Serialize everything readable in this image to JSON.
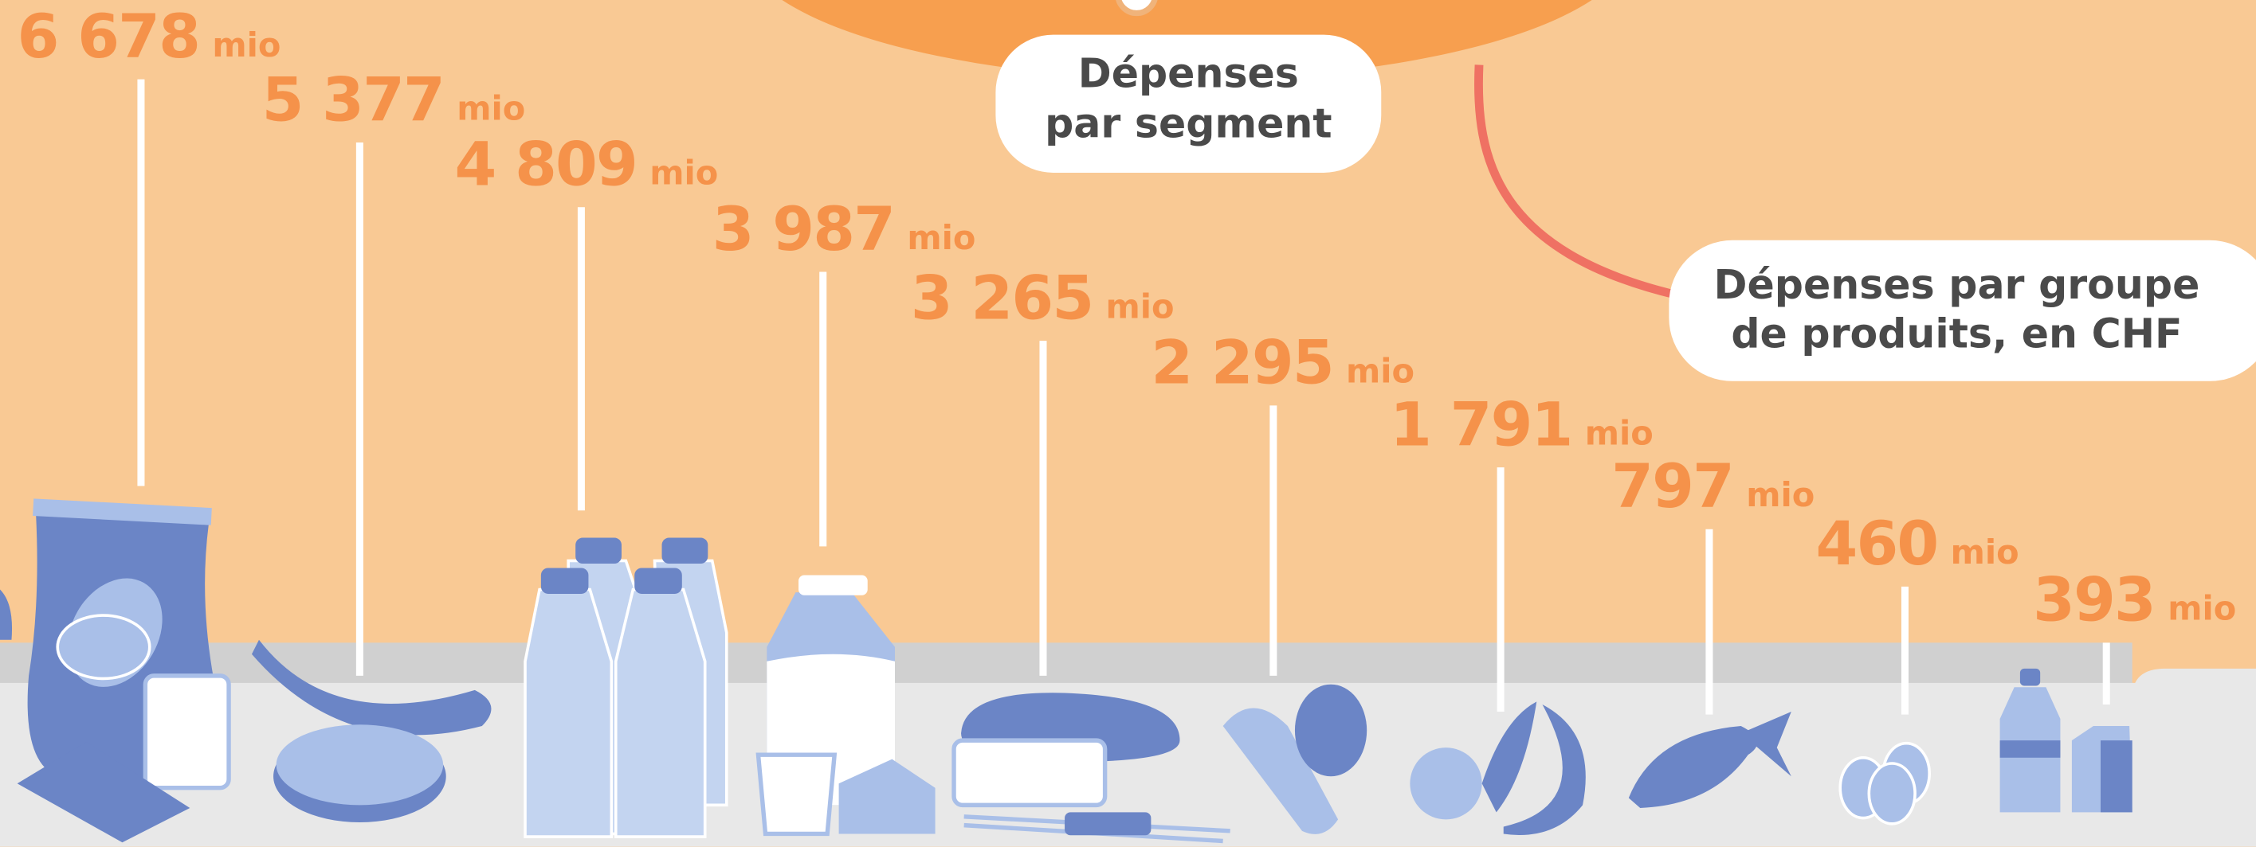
{
  "chart_data": {
    "type": "stem",
    "values": [
      6678,
      5377,
      4809,
      3987,
      3265,
      2295,
      1791,
      797,
      460,
      393
    ],
    "value_labels": [
      "6 678",
      "5 377",
      "4 809",
      "3 987",
      "3 265",
      "2 295",
      "1 791",
      "797",
      "460",
      "393"
    ],
    "unit": "mio",
    "segment_label": [
      "Dépenses",
      "par segment"
    ],
    "group_label": [
      "Dépenses par groupe",
      "de produits, en CHF"
    ],
    "color": "#f5924a"
  }
}
